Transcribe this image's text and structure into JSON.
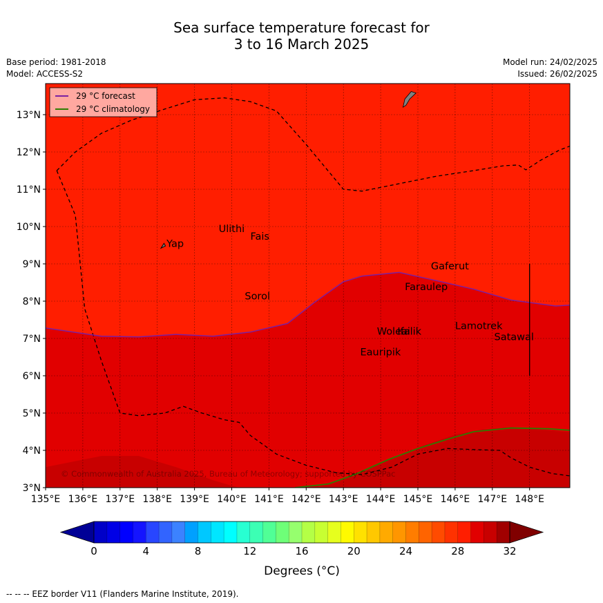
{
  "title": {
    "line1": "Sea surface temperature forecast for",
    "line2": "3 to 16 March 2025"
  },
  "meta": {
    "base_period": "Base period: 1981-2018",
    "model": "Model: ACCESS-S2",
    "model_run": "Model run: 24/02/2025",
    "issued": "Issued: 26/02/2025"
  },
  "map": {
    "lon_range": [
      135,
      149.2
    ],
    "lat_range": [
      3,
      13.8
    ],
    "lon_ticks": [
      "135°E",
      "136°E",
      "137°E",
      "138°E",
      "139°E",
      "140°E",
      "141°E",
      "142°E",
      "143°E",
      "144°E",
      "145°E",
      "146°E",
      "147°E",
      "148°E"
    ],
    "lat_ticks": [
      "3°N",
      "4°N",
      "5°N",
      "6°N",
      "7°N",
      "8°N",
      "9°N",
      "10°N",
      "11°N",
      "12°N",
      "13°N"
    ],
    "gridlines": true,
    "legend": [
      {
        "label": "29 °C  forecast",
        "color": "#7b1fa2"
      },
      {
        "label": "29 °C  climatology",
        "color": "#2e7d00"
      }
    ],
    "places": [
      {
        "name": "Yap",
        "lon": 138.25,
        "lat": 9.45
      },
      {
        "name": "Ulithi",
        "lon": 139.65,
        "lat": 9.85
      },
      {
        "name": "Fais",
        "lon": 140.5,
        "lat": 9.65
      },
      {
        "name": "Sorol",
        "lon": 140.35,
        "lat": 8.05
      },
      {
        "name": "Gaferut",
        "lon": 145.35,
        "lat": 8.85
      },
      {
        "name": "Faraulep",
        "lon": 144.65,
        "lat": 8.3
      },
      {
        "name": "Woleai",
        "lon": 143.9,
        "lat": 7.1
      },
      {
        "name": "Ifalik",
        "lon": 144.45,
        "lat": 7.1
      },
      {
        "name": "Lamotrek",
        "lon": 146.0,
        "lat": 7.25
      },
      {
        "name": "Satawal",
        "lon": 147.05,
        "lat": 6.95
      },
      {
        "name": "Eauripik",
        "lon": 143.45,
        "lat": 6.55
      }
    ],
    "copyright": "© Commonwealth of Australia 2025, Bureau of Meteorology; supported by COSPPac",
    "colors": {
      "band_29_30": "#ff1e00",
      "band_30_31": "#e10000",
      "band_31_32": "#c80000",
      "forecast_line": "#7b1fa2",
      "climatology_line": "#2e7d00"
    }
  },
  "colorbar": {
    "label": "Degrees (°C)",
    "ticks": [
      "0",
      "4",
      "8",
      "12",
      "16",
      "20",
      "24",
      "28",
      "32"
    ],
    "colors": [
      "#000096",
      "#0000c8",
      "#0000e6",
      "#0000ff",
      "#1414ff",
      "#2846ff",
      "#3264ff",
      "#3c82ff",
      "#00a0ff",
      "#00c8ff",
      "#00e6ff",
      "#00ffff",
      "#28ffd2",
      "#3cffb4",
      "#50ff96",
      "#6eff78",
      "#96ff6e",
      "#b4ff46",
      "#c8ff32",
      "#e6ff1e",
      "#fffa00",
      "#ffe100",
      "#ffc800",
      "#ffaa00",
      "#ff9600",
      "#ff7d00",
      "#ff6400",
      "#ff4b00",
      "#ff3200",
      "#ff1e00",
      "#e10000",
      "#c80000",
      "#a00000",
      "#800000"
    ]
  },
  "footnote": "--  --  -- EEZ border V11 (Flanders Marine Institute, 2019)."
}
